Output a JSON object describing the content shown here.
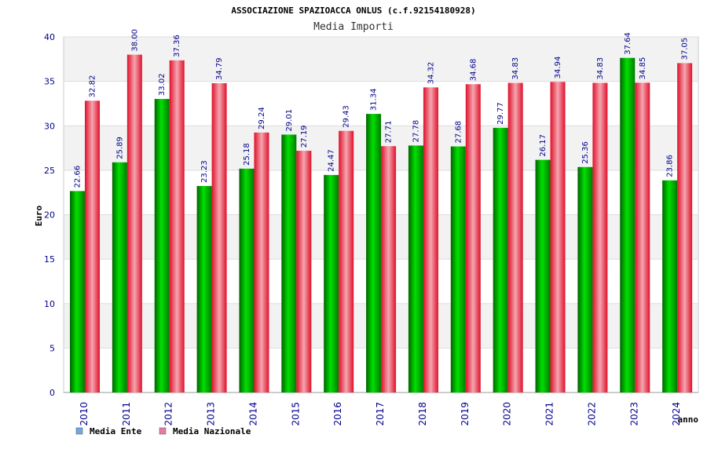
{
  "chart_data": {
    "type": "bar",
    "title": "ASSOCIAZIONE SPAZIOACCA ONLUS (c.f.92154180928)",
    "subtitle": "Media Importi",
    "ylabel": "Euro",
    "xlabel": "anno",
    "ylim": [
      0,
      40
    ],
    "yticks": [
      "0",
      "5",
      "10",
      "15",
      "20",
      "25",
      "30",
      "35",
      "40"
    ],
    "grid": true,
    "legend_position": "bottom-left",
    "categories": [
      "2010",
      "2011",
      "2012",
      "2013",
      "2014",
      "2015",
      "2016",
      "2017",
      "2018",
      "2019",
      "2020",
      "2021",
      "2022",
      "2023",
      "2024"
    ],
    "series": [
      {
        "name": "Media Ente",
        "color": "#00c000",
        "legend_color": "#6fa8e8",
        "values": [
          22.66,
          25.89,
          33.02,
          23.23,
          25.18,
          29.01,
          24.47,
          31.34,
          27.78,
          27.68,
          29.77,
          26.17,
          25.36,
          37.64,
          23.86
        ],
        "labels": [
          "22.66",
          "25.89",
          "33.02",
          "23.23",
          "25.18",
          "29.01",
          "24.47",
          "31.34",
          "27.78",
          "27.68",
          "29.77",
          "26.17",
          "25.36",
          "37.64",
          "23.86"
        ]
      },
      {
        "name": "Media Nazionale",
        "color": "#e8283c",
        "legend_color": "#e87aa8",
        "values": [
          32.82,
          38.0,
          37.36,
          34.79,
          29.24,
          27.19,
          29.43,
          27.71,
          34.32,
          34.68,
          34.83,
          34.94,
          34.83,
          34.85,
          37.05
        ],
        "labels": [
          "32.82",
          "38.00",
          "37.36",
          "34.79",
          "29.24",
          "27.19",
          "29.43",
          "27.71",
          "34.32",
          "34.68",
          "34.83",
          "34.94",
          "34.83",
          "34.85",
          "37.05"
        ]
      }
    ]
  }
}
